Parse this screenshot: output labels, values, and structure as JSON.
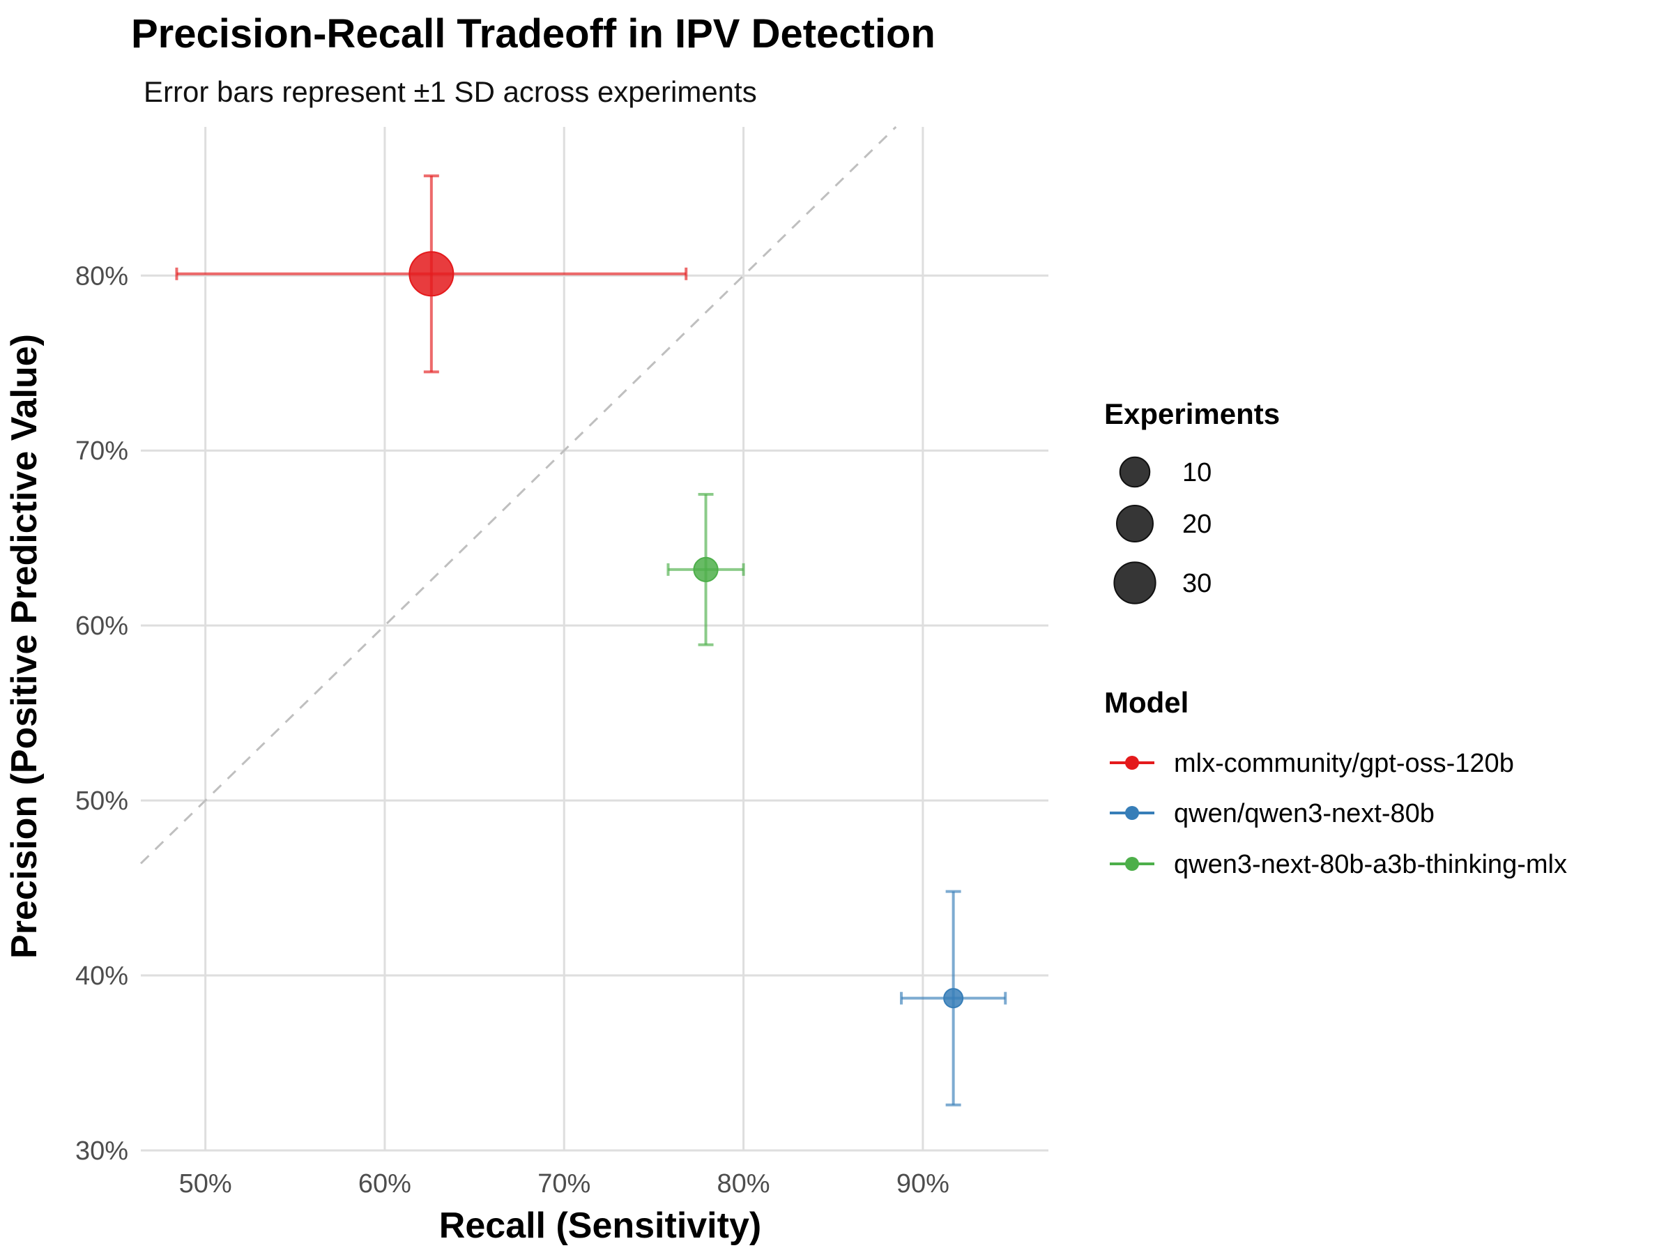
{
  "chart_data": {
    "type": "scatter",
    "title": "Precision-Recall Tradeoff in IPV Detection",
    "subtitle": "Error bars represent ±1 SD across experiments",
    "xlabel": "Recall (Sensitivity)",
    "ylabel": "Precision (Positive Predictive Value)",
    "xlim": [
      0.464,
      0.97
    ],
    "ylim": [
      0.3,
      0.885
    ],
    "x_ticks": [
      {
        "value": 0.5,
        "label": "50%"
      },
      {
        "value": 0.6,
        "label": "60%"
      },
      {
        "value": 0.7,
        "label": "70%"
      },
      {
        "value": 0.8,
        "label": "80%"
      },
      {
        "value": 0.9,
        "label": "90%"
      }
    ],
    "y_ticks": [
      {
        "value": 0.3,
        "label": "30%"
      },
      {
        "value": 0.4,
        "label": "40%"
      },
      {
        "value": 0.5,
        "label": "50%"
      },
      {
        "value": 0.6,
        "label": "60%"
      },
      {
        "value": 0.7,
        "label": "70%"
      },
      {
        "value": 0.8,
        "label": "80%"
      }
    ],
    "grid": true,
    "reference_line": {
      "type": "diagonal",
      "style": "dashed",
      "color": "#bfbfbf"
    },
    "series": [
      {
        "name": "mlx-community/gpt-oss-120b",
        "color": "#E41A1C",
        "recall": 0.626,
        "precision": 0.801,
        "recall_sd": 0.142,
        "precision_sd": 0.056,
        "experiments": 36
      },
      {
        "name": "qwen/qwen3-next-80b",
        "color": "#377EB8",
        "recall": 0.917,
        "precision": 0.387,
        "recall_sd": 0.029,
        "precision_sd": 0.061,
        "experiments": 1
      },
      {
        "name": "qwen3-next-80b-a3b-thinking-mlx",
        "color": "#4DAF4A",
        "recall": 0.779,
        "precision": 0.632,
        "recall_sd": 0.021,
        "precision_sd": 0.043,
        "experiments": 4
      }
    ],
    "size_legend": {
      "title": "Experiments",
      "entries": [
        {
          "value": 10,
          "label": "10"
        },
        {
          "value": 20,
          "label": "20"
        },
        {
          "value": 30,
          "label": "30"
        }
      ]
    },
    "color_legend": {
      "title": "Model",
      "placement": "right"
    }
  }
}
